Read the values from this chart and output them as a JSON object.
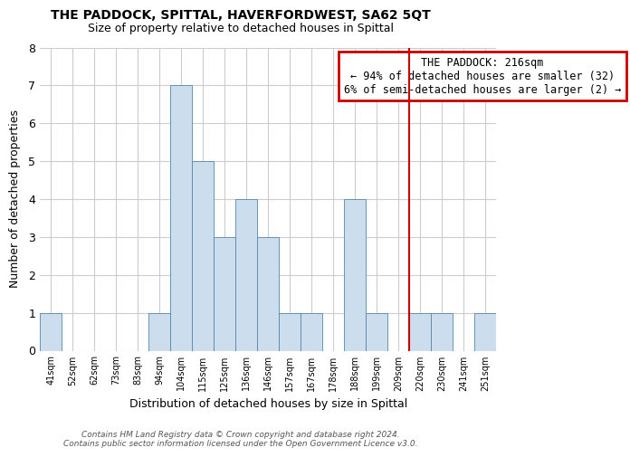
{
  "title": "THE PADDOCK, SPITTAL, HAVERFORDWEST, SA62 5QT",
  "subtitle": "Size of property relative to detached houses in Spittal",
  "xlabel": "Distribution of detached houses by size in Spittal",
  "ylabel": "Number of detached properties",
  "bin_labels": [
    "41sqm",
    "52sqm",
    "62sqm",
    "73sqm",
    "83sqm",
    "94sqm",
    "104sqm",
    "115sqm",
    "125sqm",
    "136sqm",
    "146sqm",
    "157sqm",
    "167sqm",
    "178sqm",
    "188sqm",
    "199sqm",
    "209sqm",
    "220sqm",
    "230sqm",
    "241sqm",
    "251sqm"
  ],
  "bar_values": [
    1,
    0,
    0,
    0,
    0,
    1,
    7,
    5,
    3,
    4,
    3,
    1,
    1,
    0,
    4,
    1,
    0,
    1,
    1,
    0,
    1
  ],
  "bar_color": "#ccdded",
  "bar_edge_color": "#5588aa",
  "ylim": [
    0,
    8
  ],
  "yticks": [
    0,
    1,
    2,
    3,
    4,
    5,
    6,
    7,
    8
  ],
  "grid_color": "#cccccc",
  "vline_x_index": 17,
  "vline_color": "#cc0000",
  "annotation_title": "THE PADDOCK: 216sqm",
  "annotation_line1": "← 94% of detached houses are smaller (32)",
  "annotation_line2": "6% of semi-detached houses are larger (2) →",
  "annotation_box_edge_color": "#cc0000",
  "footer_line1": "Contains HM Land Registry data © Crown copyright and database right 2024.",
  "footer_line2": "Contains public sector information licensed under the Open Government Licence v3.0.",
  "bg_color": "#ffffff",
  "plot_bg_color": "#ffffff"
}
